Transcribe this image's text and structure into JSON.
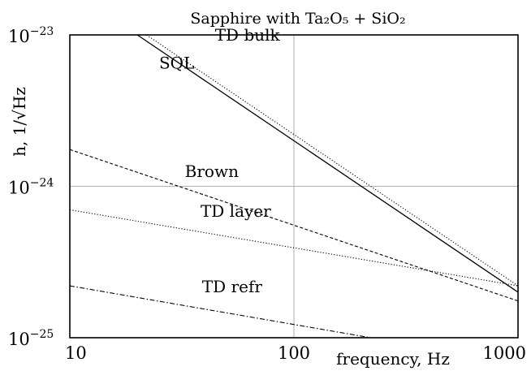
{
  "chart_data": {
    "type": "line",
    "title": "Sapphire with Ta₂O₅ + SiO₂",
    "xlabel": "frequency, Hz",
    "ylabel": "h, 1/√Hz",
    "x_scale": "log",
    "y_scale": "log",
    "xlim": [
      10,
      1000
    ],
    "ylim": [
      1e-25,
      1e-23
    ],
    "x_ticks": [
      {
        "value": 10,
        "label": "10"
      },
      {
        "value": 100,
        "label": "100"
      },
      {
        "value": 1000,
        "label": "1000"
      }
    ],
    "y_ticks": [
      {
        "value": 1e-25,
        "base": "10",
        "exp": "−25"
      },
      {
        "value": 1e-24,
        "base": "10",
        "exp": "−24"
      },
      {
        "value": 1e-23,
        "base": "10",
        "exp": "−23"
      }
    ],
    "grid": true,
    "series": [
      {
        "name": "SQL",
        "style": "solid",
        "x": [
          20,
          1000
        ],
        "y": [
          1e-23,
          2e-25
        ]
      },
      {
        "name": "TD bulk",
        "style": "dotted",
        "x": [
          22,
          1000
        ],
        "y": [
          1e-23,
          2.2e-25
        ]
      },
      {
        "name": "Brown",
        "style": "dashed",
        "x": [
          10,
          1000
        ],
        "y": [
          1.75e-24,
          1.75e-25
        ]
      },
      {
        "name": "TD layer",
        "style": "dotted",
        "x": [
          10,
          1000
        ],
        "y": [
          7e-25,
          2.2e-25
        ]
      },
      {
        "name": "TD refr",
        "style": "dashdot",
        "x": [
          10,
          220
        ],
        "y": [
          2.2e-25,
          1e-25
        ]
      }
    ],
    "annotations": [
      {
        "text": "TD bulk",
        "x": 62,
        "y": 9.2e-24
      },
      {
        "text": "SQL",
        "x": 30,
        "y": 6e-24
      },
      {
        "text": "Brown",
        "x": 43,
        "y": 1.15e-24
      },
      {
        "text": "TD layer",
        "x": 55,
        "y": 6.3e-25
      },
      {
        "text": "TD refr",
        "x": 53,
        "y": 2e-25
      }
    ]
  }
}
